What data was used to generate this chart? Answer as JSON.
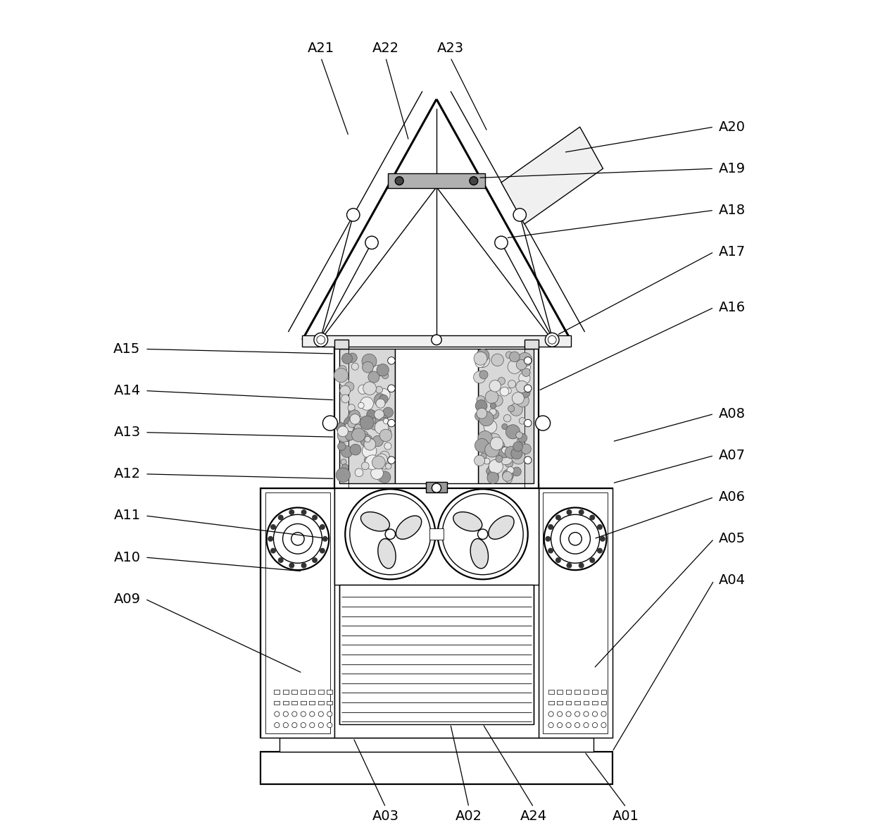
{
  "bg_color": "#ffffff",
  "line_color": "#000000",
  "label_fontsize": 14,
  "label_font": "DejaVu Sans",
  "figsize": [
    12.4,
    11.88
  ],
  "dpi": 100,
  "xlim": [
    -1.6,
    1.6
  ],
  "ylim": [
    -1.1,
    2.5
  ]
}
